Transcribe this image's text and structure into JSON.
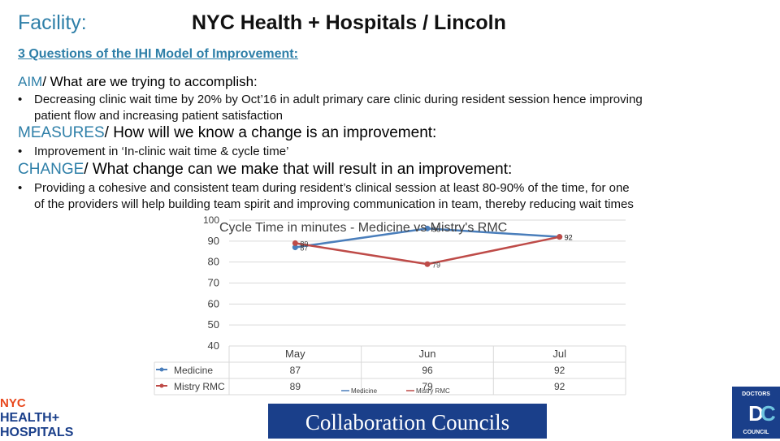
{
  "header": {
    "facility_label": "Facility:",
    "facility_name": "NYC Health + Hospitals / Lincoln",
    "iqi_title": "3 Questions of the IHI Model of Improvement:"
  },
  "aim": {
    "keyword": "AIM",
    "question": "/ What are we trying to accomplish:",
    "bullet_line1": "Decreasing clinic wait time by 20% by Oct’16 in adult primary care clinic during resident session hence improving",
    "bullet_line2": "patient flow and increasing patient satisfaction"
  },
  "measures": {
    "keyword": "MEASURES",
    "question": "/ How will we know a change is an improvement:",
    "bullet": "Improvement in ‘In-clinic wait time & cycle time’"
  },
  "change": {
    "keyword": "CHANGE",
    "question": "/ What change can we make that will result in an improvement:",
    "bullet_line1": "Providing a cohesive and consistent team during resident’s clinical session at least 80-90% of the time, for one",
    "bullet_line2": "of the providers will help building team spirit and improving communication in team, thereby reducing wait times"
  },
  "bullet_symbol": "•",
  "chart_data": {
    "type": "line",
    "title": "Cycle Time in minutes - Medicine vs Mistry's RMC",
    "categories": [
      "May",
      "Jun",
      "Jul"
    ],
    "series": [
      {
        "name": "Medicine",
        "values": [
          87,
          96,
          92
        ],
        "color": "#4a7ebb"
      },
      {
        "name": "Mistry RMC",
        "values": [
          89,
          79,
          92
        ],
        "color": "#be4b48"
      }
    ],
    "ylim": [
      40,
      100
    ],
    "yticks": [
      "40",
      "50",
      "60",
      "70",
      "80",
      "90",
      "100"
    ],
    "data_labels": {
      "Medicine": [
        "87",
        "96",
        "92"
      ],
      "Mistry RMC": [
        "89",
        "79",
        "92"
      ]
    },
    "table_legend_inline": [
      "Medicine",
      "Mistry RMC"
    ]
  },
  "footer": {
    "banner": "Collaboration Councils",
    "nyc_logo_lines": [
      "NYC",
      "HEALTH+",
      "HOSPITALS"
    ],
    "dc_logo_lines": [
      "DOCTORS",
      "COUNCIL"
    ]
  },
  "colors": {
    "accent": "#2e7fa8",
    "banner": "#1a3f8a"
  }
}
